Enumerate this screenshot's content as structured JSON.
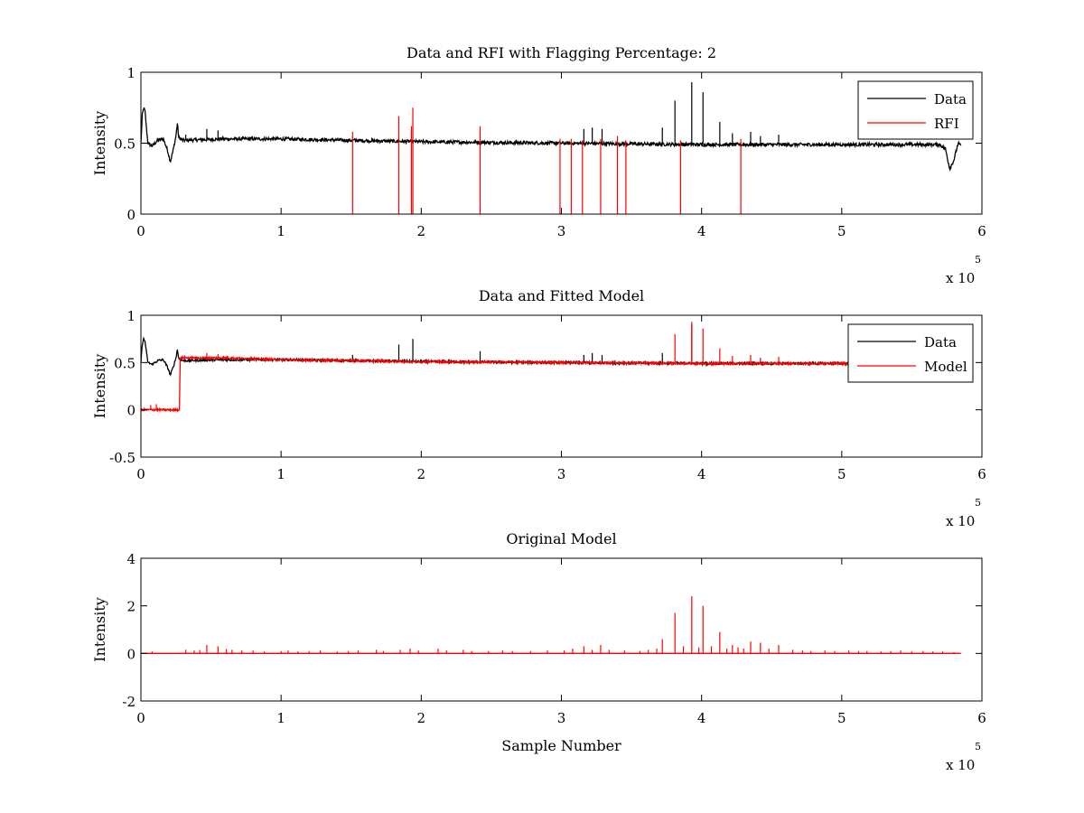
{
  "colors": {
    "data": "#000000",
    "rfi": "#ff0000",
    "model": "#ff0000",
    "axes": "#000000",
    "background": "#ffffff"
  },
  "chart_data": [
    {
      "type": "line",
      "title": "Data and RFI with Flagging Percentage: 2",
      "xlabel": "",
      "ylabel": "Intensity",
      "xlim": [
        0,
        600000
      ],
      "ylim": [
        0,
        1
      ],
      "xticks": [
        "0",
        "1",
        "2",
        "3",
        "4",
        "5",
        "6"
      ],
      "yticks": [
        "0",
        "0.5",
        "1"
      ],
      "x_multiplier": {
        "base": "x 10",
        "exponent": "5"
      },
      "grid": false,
      "legend": {
        "position": "top-right",
        "entries": [
          "Data",
          "RFI"
        ]
      },
      "series": [
        {
          "name": "Data",
          "color": "#000000",
          "baseline": [
            [
              0,
              0.5
            ],
            [
              1000,
              0.7
            ],
            [
              2000,
              0.75
            ],
            [
              3000,
              0.72
            ],
            [
              4000,
              0.6
            ],
            [
              5000,
              0.5
            ],
            [
              8000,
              0.48
            ],
            [
              12000,
              0.52
            ],
            [
              16000,
              0.53
            ],
            [
              19000,
              0.45
            ],
            [
              21000,
              0.37
            ],
            [
              23000,
              0.45
            ],
            [
              25000,
              0.55
            ],
            [
              26000,
              0.64
            ],
            [
              27000,
              0.54
            ],
            [
              30000,
              0.52
            ],
            [
              60000,
              0.53
            ],
            [
              100000,
              0.53
            ],
            [
              200000,
              0.51
            ],
            [
              300000,
              0.5
            ],
            [
              400000,
              0.49
            ],
            [
              500000,
              0.49
            ],
            [
              570000,
              0.49
            ],
            [
              574000,
              0.46
            ],
            [
              577000,
              0.32
            ],
            [
              580000,
              0.38
            ],
            [
              583000,
              0.5
            ],
            [
              585000,
              0.48
            ]
          ],
          "noise": 0.012,
          "spikes": [
            [
              32000,
              0.56
            ],
            [
              47000,
              0.6
            ],
            [
              55000,
              0.59
            ],
            [
              316000,
              0.6
            ],
            [
              322000,
              0.61
            ],
            [
              329000,
              0.6
            ],
            [
              372000,
              0.61
            ],
            [
              381000,
              0.8
            ],
            [
              393000,
              0.93
            ],
            [
              401000,
              0.86
            ],
            [
              413000,
              0.65
            ],
            [
              422000,
              0.57
            ],
            [
              435000,
              0.58
            ],
            [
              442000,
              0.55
            ],
            [
              455000,
              0.56
            ]
          ]
        },
        {
          "name": "RFI",
          "color": "#ff0000",
          "spikes": [
            [
              151000,
              0.58
            ],
            [
              184000,
              0.69
            ],
            [
              193000,
              0.62
            ],
            [
              194000,
              0.75
            ],
            [
              242000,
              0.62
            ],
            [
              299000,
              0.53
            ],
            [
              307000,
              0.53
            ],
            [
              315000,
              0.52
            ],
            [
              328000,
              0.53
            ],
            [
              340000,
              0.55
            ],
            [
              346000,
              0.52
            ],
            [
              385000,
              0.52
            ],
            [
              428000,
              0.53
            ]
          ]
        }
      ]
    },
    {
      "type": "line",
      "title": "Data and Fitted Model",
      "xlabel": "",
      "ylabel": "Intensity",
      "xlim": [
        0,
        600000
      ],
      "ylim": [
        -0.5,
        1
      ],
      "xticks": [
        "0",
        "1",
        "2",
        "3",
        "4",
        "5",
        "6"
      ],
      "yticks": [
        "-0.5",
        "0",
        "0.5",
        "1"
      ],
      "x_multiplier": {
        "base": "x 10",
        "exponent": "5"
      },
      "grid": false,
      "legend": {
        "position": "top-right",
        "entries": [
          "Data",
          "Model"
        ]
      },
      "series": [
        {
          "name": "Data",
          "color": "#000000",
          "baseline": [
            [
              0,
              0.5
            ],
            [
              1000,
              0.7
            ],
            [
              2000,
              0.75
            ],
            [
              3000,
              0.72
            ],
            [
              4000,
              0.6
            ],
            [
              5000,
              0.5
            ],
            [
              8000,
              0.48
            ],
            [
              12000,
              0.52
            ],
            [
              16000,
              0.53
            ],
            [
              19000,
              0.45
            ],
            [
              21000,
              0.37
            ],
            [
              23000,
              0.45
            ],
            [
              25000,
              0.55
            ],
            [
              26000,
              0.64
            ],
            [
              27000,
              0.54
            ],
            [
              30000,
              0.52
            ],
            [
              60000,
              0.53
            ],
            [
              100000,
              0.53
            ],
            [
              200000,
              0.51
            ],
            [
              300000,
              0.5
            ],
            [
              400000,
              0.49
            ],
            [
              500000,
              0.49
            ],
            [
              570000,
              0.49
            ],
            [
              574000,
              0.46
            ],
            [
              577000,
              0.32
            ],
            [
              580000,
              0.38
            ],
            [
              583000,
              0.5
            ],
            [
              585000,
              0.48
            ]
          ],
          "noise": 0.012,
          "spikes": [
            [
              151000,
              0.58
            ],
            [
              184000,
              0.69
            ],
            [
              194000,
              0.75
            ],
            [
              242000,
              0.62
            ],
            [
              316000,
              0.58
            ],
            [
              322000,
              0.6
            ],
            [
              329000,
              0.58
            ],
            [
              372000,
              0.6
            ],
            [
              393000,
              0.9
            ]
          ]
        },
        {
          "name": "Model",
          "color": "#ff0000",
          "baseline": [
            [
              0,
              0.0
            ],
            [
              27500,
              0.0
            ],
            [
              28000,
              0.55
            ],
            [
              60000,
              0.55
            ],
            [
              100000,
              0.53
            ],
            [
              200000,
              0.51
            ],
            [
              300000,
              0.5
            ],
            [
              400000,
              0.49
            ],
            [
              500000,
              0.49
            ],
            [
              510000,
              0.49
            ]
          ],
          "noise": 0.01,
          "spikes": [
            [
              7000,
              0.05
            ],
            [
              11000,
              0.06
            ],
            [
              47000,
              0.6
            ],
            [
              55000,
              0.59
            ],
            [
              381000,
              0.8
            ],
            [
              393000,
              0.93
            ],
            [
              401000,
              0.86
            ],
            [
              413000,
              0.65
            ],
            [
              422000,
              0.57
            ],
            [
              435000,
              0.58
            ],
            [
              442000,
              0.55
            ],
            [
              455000,
              0.56
            ]
          ]
        }
      ]
    },
    {
      "type": "line",
      "title": "Original Model",
      "xlabel": "Sample Number",
      "ylabel": "Intensity",
      "xlim": [
        0,
        600000
      ],
      "ylim": [
        -2,
        4
      ],
      "xticks": [
        "0",
        "1",
        "2",
        "3",
        "4",
        "5",
        "6"
      ],
      "yticks": [
        "-2",
        "0",
        "2",
        "4"
      ],
      "x_multiplier": {
        "base": "x 10",
        "exponent": "5"
      },
      "grid": false,
      "series": [
        {
          "color": "#ff0000",
          "baseline": [
            [
              0,
              0
            ],
            [
              585000,
              0
            ]
          ],
          "noise": 0,
          "spikes": [
            [
              8000,
              0.08
            ],
            [
              32000,
              0.15
            ],
            [
              38000,
              0.12
            ],
            [
              42000,
              0.14
            ],
            [
              47000,
              0.35
            ],
            [
              55000,
              0.3
            ],
            [
              61000,
              0.18
            ],
            [
              65000,
              0.15
            ],
            [
              72000,
              0.12
            ],
            [
              80000,
              0.12
            ],
            [
              88000,
              0.08
            ],
            [
              100000,
              0.1
            ],
            [
              105000,
              0.12
            ],
            [
              112000,
              0.08
            ],
            [
              120000,
              0.1
            ],
            [
              128000,
              0.12
            ],
            [
              140000,
              0.08
            ],
            [
              148000,
              0.1
            ],
            [
              155000,
              0.12
            ],
            [
              168000,
              0.15
            ],
            [
              173000,
              0.1
            ],
            [
              185000,
              0.15
            ],
            [
              192000,
              0.2
            ],
            [
              198000,
              0.12
            ],
            [
              212000,
              0.2
            ],
            [
              218000,
              0.12
            ],
            [
              230000,
              0.15
            ],
            [
              236000,
              0.1
            ],
            [
              248000,
              0.1
            ],
            [
              258000,
              0.12
            ],
            [
              265000,
              0.1
            ],
            [
              278000,
              0.1
            ],
            [
              290000,
              0.12
            ],
            [
              302000,
              0.12
            ],
            [
              308000,
              0.2
            ],
            [
              316000,
              0.3
            ],
            [
              322000,
              0.15
            ],
            [
              328000,
              0.35
            ],
            [
              334000,
              0.15
            ],
            [
              345000,
              0.12
            ],
            [
              356000,
              0.1
            ],
            [
              362000,
              0.15
            ],
            [
              368000,
              0.2
            ],
            [
              372000,
              0.6
            ],
            [
              381000,
              1.7
            ],
            [
              387000,
              0.3
            ],
            [
              393000,
              2.4
            ],
            [
              398000,
              0.25
            ],
            [
              401000,
              2.0
            ],
            [
              407000,
              0.3
            ],
            [
              413000,
              0.9
            ],
            [
              418000,
              0.2
            ],
            [
              422000,
              0.35
            ],
            [
              426000,
              0.25
            ],
            [
              430000,
              0.2
            ],
            [
              435000,
              0.5
            ],
            [
              442000,
              0.45
            ],
            [
              448000,
              0.2
            ],
            [
              455000,
              0.35
            ],
            [
              465000,
              0.15
            ],
            [
              472000,
              0.12
            ],
            [
              478000,
              0.1
            ],
            [
              488000,
              0.12
            ],
            [
              495000,
              0.1
            ],
            [
              505000,
              0.12
            ],
            [
              512000,
              0.1
            ],
            [
              518000,
              0.1
            ],
            [
              528000,
              0.08
            ],
            [
              535000,
              0.1
            ],
            [
              542000,
              0.12
            ],
            [
              550000,
              0.08
            ],
            [
              558000,
              0.1
            ],
            [
              565000,
              0.08
            ],
            [
              572000,
              0.08
            ],
            [
              580000,
              0.05
            ]
          ]
        }
      ]
    }
  ]
}
